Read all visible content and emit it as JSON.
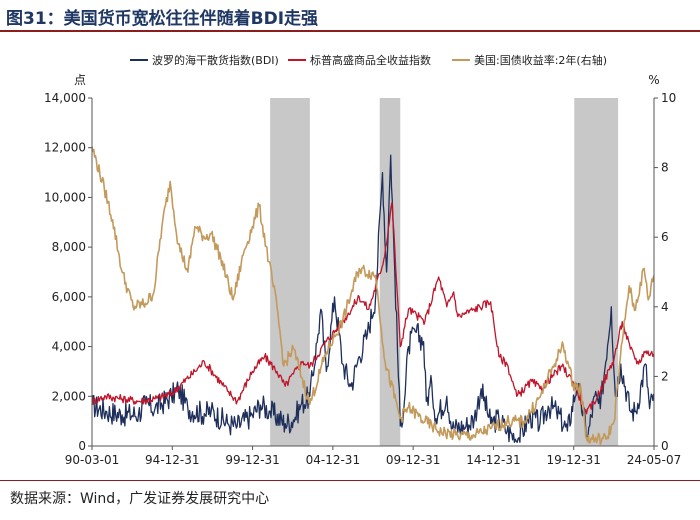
{
  "page": {
    "title": "图31：美国货币宽松往往伴随着BDI走强",
    "source": "数据来源：Wind，广发证券发展研究中心"
  },
  "colors": {
    "title": "#1f3763",
    "rule": "#8c1d1d",
    "shade": "#c8c8c8"
  },
  "chart_data": {
    "type": "line",
    "legend_position": "top",
    "grid": false,
    "left_axis": {
      "unit": "点",
      "range": [
        0,
        14000
      ],
      "ticks": [
        "0",
        "2,000",
        "4,000",
        "6,000",
        "8,000",
        "10,000",
        "12,000",
        "14,000"
      ]
    },
    "right_axis": {
      "unit": "%",
      "range": [
        0,
        10
      ],
      "ticks": [
        "0",
        "2",
        "4",
        "6",
        "8",
        "10"
      ]
    },
    "x_axis": {
      "range": [
        "1990-03-01",
        "2024-05-07"
      ],
      "ticks": [
        "90-03-01",
        "94-12-31",
        "99-12-31",
        "04-12-31",
        "09-12-31",
        "14-12-31",
        "19-12-31",
        "24-05-07"
      ]
    },
    "shaded_periods": [
      [
        "2001-01",
        "2003-06"
      ],
      [
        "2007-09",
        "2008-12"
      ],
      [
        "2019-07",
        "2022-03"
      ]
    ],
    "series": [
      {
        "name": "波罗的海干散货指数(BDI)",
        "axis": "left",
        "color": "#1f2f5c",
        "points": [
          [
            "1990-03",
            1650
          ],
          [
            "1991-01",
            1400
          ],
          [
            "1992-01",
            1250
          ],
          [
            "1993-01",
            1300
          ],
          [
            "1993-06",
            1700
          ],
          [
            "1994-01",
            1500
          ],
          [
            "1995-01",
            2000
          ],
          [
            "1995-06",
            2300
          ],
          [
            "1996-01",
            1500
          ],
          [
            "1997-01",
            1300
          ],
          [
            "1997-06",
            1400
          ],
          [
            "1998-06",
            900
          ],
          [
            "1999-01",
            800
          ],
          [
            "1999-12",
            1250
          ],
          [
            "2000-06",
            1650
          ],
          [
            "2001-01",
            1400
          ],
          [
            "2001-12",
            900
          ],
          [
            "2002-06",
            1050
          ],
          [
            "2002-12",
            1700
          ],
          [
            "2003-06",
            2000
          ],
          [
            "2003-12",
            4500
          ],
          [
            "2004-02",
            5500
          ],
          [
            "2004-06",
            3000
          ],
          [
            "2004-12",
            6000
          ],
          [
            "2005-06",
            3300
          ],
          [
            "2005-12",
            2400
          ],
          [
            "2006-06",
            3600
          ],
          [
            "2006-12",
            4500
          ],
          [
            "2007-06",
            6000
          ],
          [
            "2007-11",
            11000
          ],
          [
            "2008-02",
            7000
          ],
          [
            "2008-05",
            11700
          ],
          [
            "2008-08",
            7000
          ],
          [
            "2008-12",
            800
          ],
          [
            "2009-03",
            1800
          ],
          [
            "2009-06",
            4000
          ],
          [
            "2009-11",
            4600
          ],
          [
            "2010-05",
            4200
          ],
          [
            "2010-07",
            1800
          ],
          [
            "2010-11",
            2500
          ],
          [
            "2011-02",
            1100
          ],
          [
            "2011-10",
            2000
          ],
          [
            "2012-02",
            700
          ],
          [
            "2012-12",
            800
          ],
          [
            "2013-06",
            1100
          ],
          [
            "2013-11",
            2300
          ],
          [
            "2014-06",
            900
          ],
          [
            "2014-12",
            1100
          ],
          [
            "2015-06",
            600
          ],
          [
            "2016-02",
            300
          ],
          [
            "2016-11",
            1200
          ],
          [
            "2017-06",
            900
          ],
          [
            "2017-12",
            1600
          ],
          [
            "2018-06",
            1400
          ],
          [
            "2019-02",
            600
          ],
          [
            "2019-09",
            2500
          ],
          [
            "2020-05",
            400
          ],
          [
            "2020-10",
            2000
          ],
          [
            "2021-02",
            1500
          ],
          [
            "2021-10",
            5600
          ],
          [
            "2022-01",
            2000
          ],
          [
            "2022-05",
            3300
          ],
          [
            "2022-12",
            1400
          ],
          [
            "2023-04",
            1400
          ],
          [
            "2023-11",
            3300
          ],
          [
            "2024-02",
            1500
          ],
          [
            "2024-05",
            2100
          ]
        ]
      },
      {
        "name": "标普高盛商品全收益指数",
        "axis": "left",
        "color": "#c0152a",
        "points": [
          [
            "1990-03",
            1800
          ],
          [
            "1991-01",
            2000
          ],
          [
            "1992-01",
            1900
          ],
          [
            "1993-01",
            1800
          ],
          [
            "1994-01",
            1900
          ],
          [
            "1995-01",
            2100
          ],
          [
            "1996-06",
            3000
          ],
          [
            "1997-01",
            3400
          ],
          [
            "1998-06",
            2200
          ],
          [
            "1999-01",
            1800
          ],
          [
            "1999-12",
            3000
          ],
          [
            "2000-09",
            3600
          ],
          [
            "2001-06",
            3000
          ],
          [
            "2001-12",
            2400
          ],
          [
            "2002-06",
            2900
          ],
          [
            "2003-01",
            3400
          ],
          [
            "2003-06",
            3200
          ],
          [
            "2004-06",
            4200
          ],
          [
            "2005-06",
            5000
          ],
          [
            "2006-06",
            6000
          ],
          [
            "2007-01",
            5500
          ],
          [
            "2007-12",
            7500
          ],
          [
            "2008-06",
            9800
          ],
          [
            "2008-12",
            4000
          ],
          [
            "2009-06",
            5500
          ],
          [
            "2010-06",
            5000
          ],
          [
            "2011-04",
            6800
          ],
          [
            "2011-10",
            5600
          ],
          [
            "2012-03",
            6200
          ],
          [
            "2012-06",
            5200
          ],
          [
            "2013-06",
            5500
          ],
          [
            "2014-06",
            5800
          ],
          [
            "2014-12",
            3600
          ],
          [
            "2015-06",
            3300
          ],
          [
            "2016-01",
            2000
          ],
          [
            "2016-12",
            2600
          ],
          [
            "2017-06",
            2300
          ],
          [
            "2018-10",
            3200
          ],
          [
            "2019-06",
            2600
          ],
          [
            "2020-04",
            1300
          ],
          [
            "2020-12",
            2000
          ],
          [
            "2021-12",
            3500
          ],
          [
            "2022-06",
            5000
          ],
          [
            "2022-12",
            3900
          ],
          [
            "2023-06",
            3300
          ],
          [
            "2023-10",
            3800
          ],
          [
            "2024-05",
            3700
          ]
        ]
      },
      {
        "name": "美国:国债收益率:2年(右轴)",
        "axis": "right",
        "color": "#c49a5c",
        "points": [
          [
            "1990-03",
            8.6
          ],
          [
            "1990-12",
            7.4
          ],
          [
            "1991-06",
            6.5
          ],
          [
            "1992-01",
            5.0
          ],
          [
            "1992-09",
            4.0
          ],
          [
            "1993-06",
            4.1
          ],
          [
            "1993-12",
            4.4
          ],
          [
            "1994-06",
            6.3
          ],
          [
            "1994-12",
            7.6
          ],
          [
            "1995-06",
            5.8
          ],
          [
            "1996-01",
            5.0
          ],
          [
            "1996-06",
            6.3
          ],
          [
            "1997-01",
            6.0
          ],
          [
            "1997-06",
            6.1
          ],
          [
            "1998-01",
            5.4
          ],
          [
            "1998-10",
            4.2
          ],
          [
            "1999-06",
            5.6
          ],
          [
            "1999-12",
            6.3
          ],
          [
            "2000-05",
            6.9
          ],
          [
            "2000-12",
            5.3
          ],
          [
            "2001-06",
            4.0
          ],
          [
            "2001-11",
            2.3
          ],
          [
            "2002-06",
            2.8
          ],
          [
            "2003-06",
            1.2
          ],
          [
            "2004-06",
            2.7
          ],
          [
            "2005-06",
            3.6
          ],
          [
            "2006-06",
            5.1
          ],
          [
            "2007-06",
            4.9
          ],
          [
            "2008-01",
            2.4
          ],
          [
            "2008-12",
            0.8
          ],
          [
            "2009-06",
            1.1
          ],
          [
            "2010-06",
            0.7
          ],
          [
            "2011-06",
            0.4
          ],
          [
            "2012-06",
            0.3
          ],
          [
            "2013-06",
            0.3
          ],
          [
            "2014-06",
            0.5
          ],
          [
            "2015-06",
            0.7
          ],
          [
            "2016-06",
            0.7
          ],
          [
            "2017-06",
            1.4
          ],
          [
            "2018-06",
            2.5
          ],
          [
            "2018-11",
            2.9
          ],
          [
            "2019-06",
            1.8
          ],
          [
            "2019-12",
            1.6
          ],
          [
            "2020-04",
            0.2
          ],
          [
            "2021-06",
            0.2
          ],
          [
            "2021-12",
            0.7
          ],
          [
            "2022-06",
            3.0
          ],
          [
            "2022-11",
            4.6
          ],
          [
            "2023-03",
            3.9
          ],
          [
            "2023-10",
            5.1
          ],
          [
            "2024-01",
            4.2
          ],
          [
            "2024-05",
            4.9
          ]
        ]
      }
    ]
  }
}
